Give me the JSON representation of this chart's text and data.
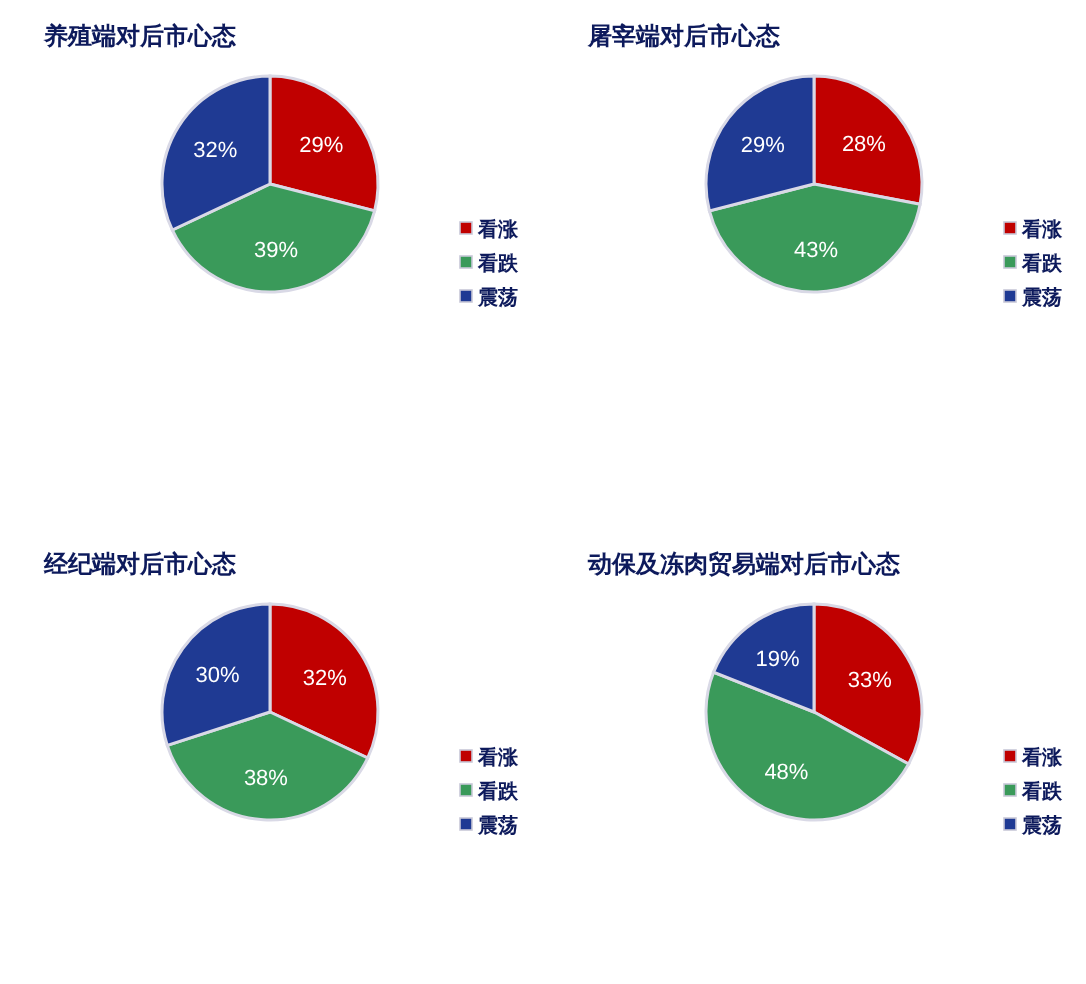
{
  "chart_data": [
    {
      "type": "pie",
      "title": "养殖端对后市心态",
      "categories": [
        "看涨",
        "看跌",
        "震荡"
      ],
      "values": [
        29,
        39,
        32
      ],
      "value_labels": [
        "29%",
        "39%",
        "32%"
      ],
      "colors": [
        "#c00000",
        "#3a9a5a",
        "#1f3a93"
      ],
      "legend": "right"
    },
    {
      "type": "pie",
      "title": "屠宰端对后市心态",
      "categories": [
        "看涨",
        "看跌",
        "震荡"
      ],
      "values": [
        28,
        43,
        29
      ],
      "value_labels": [
        "28%",
        "43%",
        "29%"
      ],
      "colors": [
        "#c00000",
        "#3a9a5a",
        "#1f3a93"
      ],
      "legend": "right"
    },
    {
      "type": "pie",
      "title": "经纪端对后市心态",
      "categories": [
        "看涨",
        "看跌",
        "震荡"
      ],
      "values": [
        32,
        38,
        30
      ],
      "value_labels": [
        "32%",
        "38%",
        "30%"
      ],
      "colors": [
        "#c00000",
        "#3a9a5a",
        "#1f3a93"
      ],
      "legend": "right"
    },
    {
      "type": "pie",
      "title": "动保及冻肉贸易端对后市心态",
      "categories": [
        "看涨",
        "看跌",
        "震荡"
      ],
      "values": [
        33,
        48,
        19
      ],
      "value_labels": [
        "33%",
        "48%",
        "19%"
      ],
      "colors": [
        "#c00000",
        "#3a9a5a",
        "#1f3a93"
      ],
      "legend": "right"
    }
  ]
}
